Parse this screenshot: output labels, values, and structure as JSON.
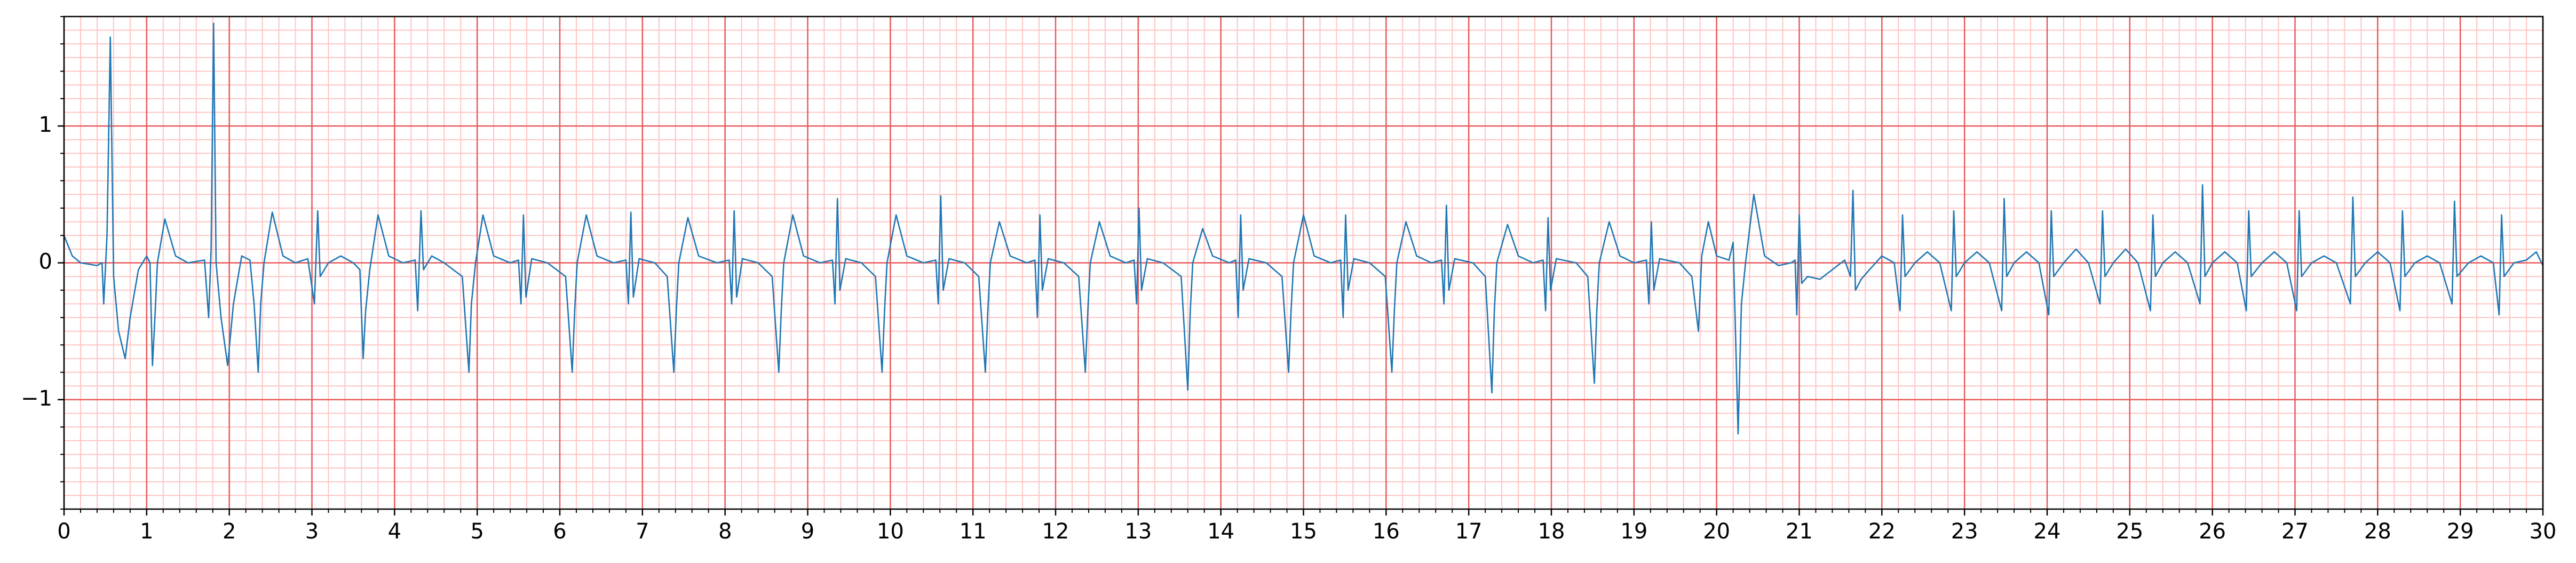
{
  "chart_data": {
    "type": "line",
    "x": [
      0,
      0.1,
      0.2,
      0.4,
      0.46,
      0.48,
      0.52,
      0.56,
      0.6,
      0.66,
      0.74,
      0.8,
      0.9,
      1.0,
      1.04,
      1.07,
      1.1,
      1.13,
      1.22,
      1.35,
      1.5,
      1.7,
      1.75,
      1.78,
      1.81,
      1.84,
      1.9,
      1.98,
      2.05,
      2.15,
      2.25,
      2.3,
      2.35,
      2.38,
      2.42,
      2.52,
      2.65,
      2.8,
      2.95,
      3.03,
      3.07,
      3.1,
      3.2,
      3.35,
      3.5,
      3.58,
      3.62,
      3.65,
      3.7,
      3.8,
      3.93,
      4.1,
      4.25,
      4.28,
      4.32,
      4.35,
      4.45,
      4.6,
      4.82,
      4.9,
      4.93,
      4.98,
      5.07,
      5.2,
      5.4,
      5.5,
      5.53,
      5.56,
      5.59,
      5.66,
      5.85,
      6.07,
      6.15,
      6.18,
      6.21,
      6.32,
      6.45,
      6.65,
      6.8,
      6.83,
      6.86,
      6.89,
      6.96,
      7.15,
      7.3,
      7.38,
      7.41,
      7.44,
      7.55,
      7.68,
      7.9,
      8.05,
      8.08,
      8.11,
      8.14,
      8.21,
      8.4,
      8.57,
      8.65,
      8.68,
      8.71,
      8.82,
      8.95,
      9.15,
      9.3,
      9.33,
      9.36,
      9.39,
      9.46,
      9.65,
      9.82,
      9.9,
      9.93,
      9.96,
      10.07,
      10.2,
      10.4,
      10.55,
      10.58,
      10.61,
      10.64,
      10.71,
      10.9,
      11.07,
      11.15,
      11.18,
      11.21,
      11.32,
      11.45,
      11.65,
      11.75,
      11.78,
      11.81,
      11.84,
      11.91,
      12.1,
      12.28,
      12.36,
      12.39,
      12.42,
      12.53,
      12.66,
      12.85,
      12.95,
      12.98,
      13.01,
      13.04,
      13.11,
      13.3,
      13.52,
      13.6,
      13.63,
      13.66,
      13.78,
      13.9,
      14.1,
      14.18,
      14.21,
      14.24,
      14.27,
      14.34,
      14.55,
      14.74,
      14.82,
      14.85,
      14.88,
      15.0,
      15.13,
      15.33,
      15.45,
      15.48,
      15.51,
      15.54,
      15.61,
      15.8,
      15.99,
      16.07,
      16.1,
      16.13,
      16.24,
      16.37,
      16.55,
      16.67,
      16.7,
      16.73,
      16.76,
      16.83,
      17.05,
      17.2,
      17.28,
      17.31,
      17.34,
      17.47,
      17.6,
      17.78,
      17.9,
      17.93,
      17.96,
      17.99,
      18.06,
      18.3,
      18.44,
      18.52,
      18.55,
      18.58,
      18.7,
      18.83,
      19.0,
      19.15,
      19.18,
      19.21,
      19.24,
      19.31,
      19.55,
      19.7,
      19.78,
      19.82,
      19.9,
      20.0,
      20.15,
      20.2,
      20.26,
      20.3,
      20.35,
      20.45,
      20.58,
      20.75,
      20.9,
      20.95,
      20.97,
      21.0,
      21.03,
      21.1,
      21.25,
      21.4,
      21.55,
      21.62,
      21.65,
      21.68,
      21.75,
      21.85,
      22.0,
      22.15,
      22.22,
      22.25,
      22.28,
      22.4,
      22.55,
      22.7,
      22.84,
      22.87,
      22.9,
      23.0,
      23.15,
      23.3,
      23.45,
      23.48,
      23.51,
      23.6,
      23.75,
      23.9,
      24.02,
      24.05,
      24.08,
      24.2,
      24.35,
      24.5,
      24.64,
      24.67,
      24.7,
      24.8,
      24.95,
      25.1,
      25.25,
      25.28,
      25.31,
      25.4,
      25.55,
      25.7,
      25.85,
      25.88,
      25.91,
      26.0,
      26.15,
      26.3,
      26.41,
      26.44,
      26.47,
      26.6,
      26.75,
      26.9,
      27.02,
      27.05,
      27.08,
      27.2,
      27.35,
      27.5,
      27.67,
      27.7,
      27.73,
      27.85,
      28.0,
      28.15,
      28.27,
      28.3,
      28.33,
      28.45,
      28.6,
      28.75,
      28.9,
      28.93,
      28.96,
      29.1,
      29.25,
      29.4,
      29.47,
      29.5,
      29.53,
      29.65,
      29.8,
      29.92,
      30.0
    ],
    "values": [
      0.2,
      0.05,
      0,
      -0.02,
      0,
      -0.3,
      0.2,
      1.65,
      -0.1,
      -0.5,
      -0.7,
      -0.4,
      -0.05,
      0.05,
      0,
      -0.75,
      -0.4,
      0,
      0.32,
      0.05,
      0,
      0.02,
      -0.4,
      0.1,
      1.75,
      0,
      -0.4,
      -0.75,
      -0.3,
      0.05,
      0.02,
      -0.3,
      -0.8,
      -0.3,
      0,
      0.37,
      0.05,
      0,
      0.03,
      -0.3,
      0.38,
      -0.1,
      0,
      0.05,
      0,
      -0.05,
      -0.7,
      -0.35,
      -0.05,
      0.35,
      0.05,
      0,
      0.02,
      -0.35,
      0.38,
      -0.05,
      0.05,
      0,
      -0.1,
      -0.8,
      -0.3,
      0,
      0.35,
      0.05,
      0,
      0.02,
      -0.3,
      0.35,
      -0.25,
      0.03,
      0,
      -0.1,
      -0.8,
      -0.35,
      0,
      0.35,
      0.05,
      0,
      0.02,
      -0.3,
      0.37,
      -0.25,
      0.03,
      0,
      -0.1,
      -0.8,
      -0.35,
      0,
      0.33,
      0.05,
      0,
      0.02,
      -0.3,
      0.38,
      -0.25,
      0.03,
      0,
      -0.1,
      -0.8,
      -0.35,
      0,
      0.35,
      0.05,
      0,
      0.02,
      -0.3,
      0.47,
      -0.2,
      0.03,
      0,
      -0.1,
      -0.8,
      -0.35,
      0,
      0.35,
      0.05,
      0,
      0.02,
      -0.3,
      0.49,
      -0.2,
      0.03,
      0,
      -0.1,
      -0.8,
      -0.35,
      0,
      0.3,
      0.05,
      0,
      0.02,
      -0.4,
      0.35,
      -0.2,
      0.03,
      0,
      -0.1,
      -0.8,
      -0.35,
      0,
      0.3,
      0.05,
      0,
      0.02,
      -0.3,
      0.4,
      -0.2,
      0.03,
      0,
      -0.1,
      -0.93,
      -0.35,
      0,
      0.25,
      0.05,
      0,
      0.02,
      -0.4,
      0.35,
      -0.2,
      0.03,
      0,
      -0.1,
      -0.8,
      -0.35,
      0,
      0.35,
      0.05,
      0,
      0.02,
      -0.4,
      0.35,
      -0.2,
      0.03,
      0,
      -0.1,
      -0.8,
      -0.35,
      0,
      0.3,
      0.05,
      0,
      0.02,
      -0.3,
      0.42,
      -0.2,
      0.03,
      0,
      -0.1,
      -0.95,
      -0.35,
      0,
      0.28,
      0.05,
      0,
      0.02,
      -0.35,
      0.33,
      -0.2,
      0.03,
      0,
      -0.1,
      -0.88,
      -0.35,
      0,
      0.3,
      0.05,
      0,
      0.02,
      -0.3,
      0.3,
      -0.2,
      0.03,
      0,
      -0.1,
      -0.5,
      0.05,
      0.3,
      0.05,
      0.02,
      0.15,
      -1.25,
      -0.3,
      0,
      0.5,
      0.05,
      -0.02,
      0,
      0.02,
      -0.38,
      0.35,
      -0.15,
      -0.1,
      -0.12,
      -0.05,
      0.02,
      -0.1,
      0.53,
      -0.2,
      -0.12,
      -0.05,
      0.05,
      0,
      -0.35,
      0.35,
      -0.1,
      0,
      0.08,
      0,
      -0.35,
      0.38,
      -0.1,
      0,
      0.08,
      0,
      -0.35,
      0.47,
      -0.1,
      0,
      0.08,
      0,
      -0.38,
      0.38,
      -0.1,
      0,
      0.1,
      0,
      -0.3,
      0.38,
      -0.1,
      0,
      0.1,
      0,
      -0.35,
      0.35,
      -0.1,
      0,
      0.08,
      0,
      -0.3,
      0.57,
      -0.1,
      0,
      0.08,
      0,
      -0.35,
      0.38,
      -0.1,
      0,
      0.08,
      0,
      -0.35,
      0.38,
      -0.1,
      0,
      0.05,
      0,
      -0.3,
      0.48,
      -0.1,
      0,
      0.08,
      0,
      -0.35,
      0.38,
      -0.1,
      0,
      0.05,
      0,
      -0.3,
      0.45,
      -0.1,
      0,
      0.05,
      0,
      -0.38,
      0.35,
      -0.1,
      0,
      0.02,
      0.08,
      -0.02
    ],
    "color": "#1f77b4",
    "xlim": [
      0,
      30
    ],
    "ylim": [
      -1.8,
      1.8
    ],
    "xticks": [
      0,
      1,
      2,
      3,
      4,
      5,
      6,
      7,
      8,
      9,
      10,
      11,
      12,
      13,
      14,
      15,
      16,
      17,
      18,
      19,
      20,
      21,
      22,
      23,
      24,
      25,
      26,
      27,
      28,
      29,
      30
    ],
    "yticks": [
      {
        "value": -1,
        "label": "−1"
      },
      0,
      1
    ],
    "grid": true,
    "grid_color": "#e8595b",
    "minor_grid": true,
    "minor_grid_color": "#ffc4c4",
    "xminor_step": 0.2,
    "yminor_step": 0.1
  }
}
